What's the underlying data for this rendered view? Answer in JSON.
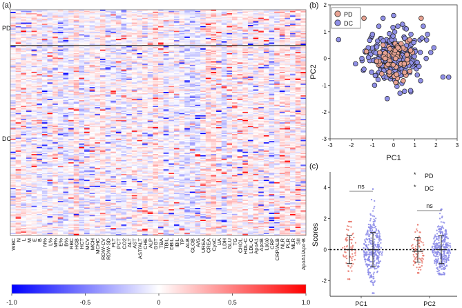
{
  "figure": {
    "panel_a_label": "(a)",
    "panel_b_label": "(b)",
    "panel_c_label": "(c)"
  },
  "colors": {
    "pd": "#e8a393",
    "dc": "#8f8fe6",
    "neg": "#0000ff",
    "pos": "#ff0000",
    "mid": "#ffffff"
  },
  "chart_data": [
    {
      "type": "heatmap",
      "panel": "(a)",
      "row_groups": [
        "PD",
        "DC"
      ],
      "columns": [
        "WBC",
        "N",
        "L",
        "M",
        "E",
        "B",
        "N%",
        "L%",
        "M%",
        "E%",
        "B%",
        "RBC",
        "HGB",
        "HCT",
        "MCV",
        "MCH",
        "MCHC",
        "RDW-CV",
        "RDW-SD",
        "PLT",
        "PCT",
        "CO2",
        "ALT",
        "AST",
        "AST/ALT",
        "CHE",
        "ALP",
        "GGT",
        "TBA",
        "TBIL",
        "DBIL",
        "IBIL",
        "TP",
        "ALB",
        "GLOB",
        "A/G",
        "UREA",
        "CREA",
        "CysC",
        "UA",
        "LDH",
        "GLU",
        "TG",
        "CHOL",
        "HDL-C",
        "LDL-C",
        "ApoA1",
        "ApoB",
        "Lp(a)",
        "CRP",
        "CRP/ALB",
        "NLR",
        "PLR",
        "MLR",
        "SII",
        "ApoA1/Apo-B"
      ],
      "value_range": [
        -1.0,
        1.0
      ],
      "colorbar_ticks": [
        "-1.0",
        "-0.5",
        "0",
        "0.5",
        "1.0"
      ]
    },
    {
      "type": "scatter",
      "panel": "(b)",
      "xlabel": "PC1",
      "ylabel": "PC2",
      "xlim": [
        -3,
        3
      ],
      "ylim": [
        -3,
        2
      ],
      "xticks": [
        "-3",
        "-2",
        "-1",
        "0",
        "1",
        "2",
        "3"
      ],
      "yticks": [
        "-3",
        "-2",
        "-1",
        "0",
        "1",
        "2"
      ],
      "legend": [
        "PD",
        "DC"
      ],
      "legend_position": "top-left",
      "series": [
        {
          "name": "DC",
          "points": [
            [
              -0.5,
              1.5
            ],
            [
              0.0,
              1.6
            ],
            [
              -1.0,
              0.9
            ],
            [
              -2.6,
              0.7
            ],
            [
              1.6,
              0.9
            ],
            [
              1.4,
              1.2
            ],
            [
              -1.5,
              0.0
            ],
            [
              -1.4,
              -0.4
            ],
            [
              -0.9,
              -1.0
            ],
            [
              0.8,
              -1.2
            ],
            [
              -0.3,
              -1.5
            ],
            [
              0.3,
              -1.3
            ],
            [
              1.2,
              -0.3
            ],
            [
              -1.2,
              0.4
            ],
            [
              2.6,
              -0.7
            ],
            [
              1.9,
              0.4
            ],
            [
              -1.8,
              -0.2
            ],
            [
              0.6,
              1.1
            ],
            [
              -0.7,
              1.2
            ],
            [
              0.2,
              1.2
            ]
          ]
        },
        {
          "name": "PD",
          "points": [
            [
              -1.4,
              1.5
            ],
            [
              1.3,
              1.5
            ],
            [
              -0.5,
              0.5
            ],
            [
              0.2,
              0.4
            ],
            [
              0.5,
              -0.2
            ],
            [
              -0.2,
              -0.5
            ],
            [
              -0.8,
              -0.1
            ],
            [
              0.8,
              0.3
            ],
            [
              0.1,
              -0.9
            ],
            [
              -0.4,
              0.0
            ]
          ]
        }
      ]
    },
    {
      "type": "scatter",
      "subtype": "strip-dot",
      "panel": "(c)",
      "ylabel": "Scores",
      "categories": [
        "PC1",
        "PC2"
      ],
      "ylim": [
        -3,
        5
      ],
      "yticks": [
        "-2",
        "0",
        "2",
        "4"
      ],
      "reference_line": 0,
      "legend": [
        "PD",
        "DC"
      ],
      "legend_position": "top-right",
      "annotations": [
        "ns",
        "ns"
      ],
      "summary": [
        {
          "category": "PC1",
          "group": "PD",
          "mean": 0.0,
          "sd_low": -0.9,
          "sd_high": 0.9,
          "min": -1.9,
          "max": 1.8
        },
        {
          "category": "PC1",
          "group": "DC",
          "mean": 0.0,
          "sd_low": -1.1,
          "sd_high": 1.1,
          "min": -2.8,
          "max": 3.9
        },
        {
          "category": "PC2",
          "group": "PD",
          "mean": -0.1,
          "sd_low": -0.8,
          "sd_high": 0.8,
          "min": -1.5,
          "max": 1.6
        },
        {
          "category": "PC2",
          "group": "DC",
          "mean": 0.0,
          "sd_low": -0.9,
          "sd_high": 0.9,
          "min": -1.6,
          "max": 2.6
        }
      ]
    }
  ]
}
